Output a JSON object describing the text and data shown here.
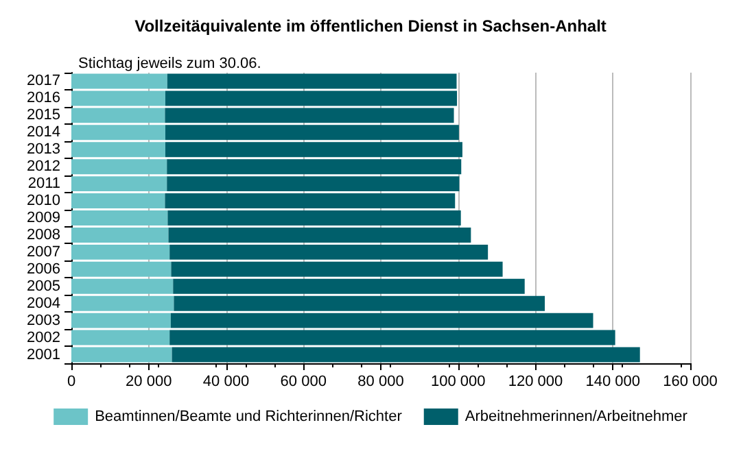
{
  "chart_data": {
    "type": "bar",
    "orientation": "horizontal",
    "stacked": true,
    "title": "Vollzeitäquivalente im öffentlichen Dienst in Sachsen-Anhalt",
    "subtitle": "Stichtag jeweils zum 30.06.",
    "categories": [
      "2017",
      "2016",
      "2015",
      "2014",
      "2013",
      "2012",
      "2011",
      "2010",
      "2009",
      "2008",
      "2007",
      "2006",
      "2005",
      "2004",
      "2003",
      "2002",
      "2001"
    ],
    "series": [
      {
        "name": "Beamtinnen/Beamte und Richterinnen/Richter",
        "color": "#6cc4c8",
        "values": [
          24800,
          24300,
          24200,
          24300,
          24300,
          24700,
          24700,
          24200,
          24900,
          25100,
          25400,
          25800,
          26300,
          26500,
          25700,
          25400,
          26000
        ]
      },
      {
        "name": "Arbeitnehmerinnen/Arbeitnehmer",
        "color": "#005f6b",
        "values": [
          74800,
          75400,
          74700,
          75900,
          76800,
          76100,
          75600,
          75000,
          75800,
          78200,
          82300,
          85700,
          90900,
          95900,
          109200,
          115200,
          121000
        ]
      }
    ],
    "xlim": [
      0,
      160000
    ],
    "xticks": [
      0,
      {
        "value": 20000,
        "label": "20 000"
      },
      {
        "value": 40000,
        "label": "40 000"
      },
      {
        "value": 60000,
        "label": "60 000"
      },
      {
        "value": 80000,
        "label": "80 000"
      },
      {
        "value": 100000,
        "label": "100 000"
      },
      {
        "value": 120000,
        "label": "120 000"
      },
      {
        "value": 140000,
        "label": "140 000"
      },
      {
        "value": 160000,
        "label": "160 000"
      }
    ],
    "grid": "x",
    "legend": "bottom"
  }
}
